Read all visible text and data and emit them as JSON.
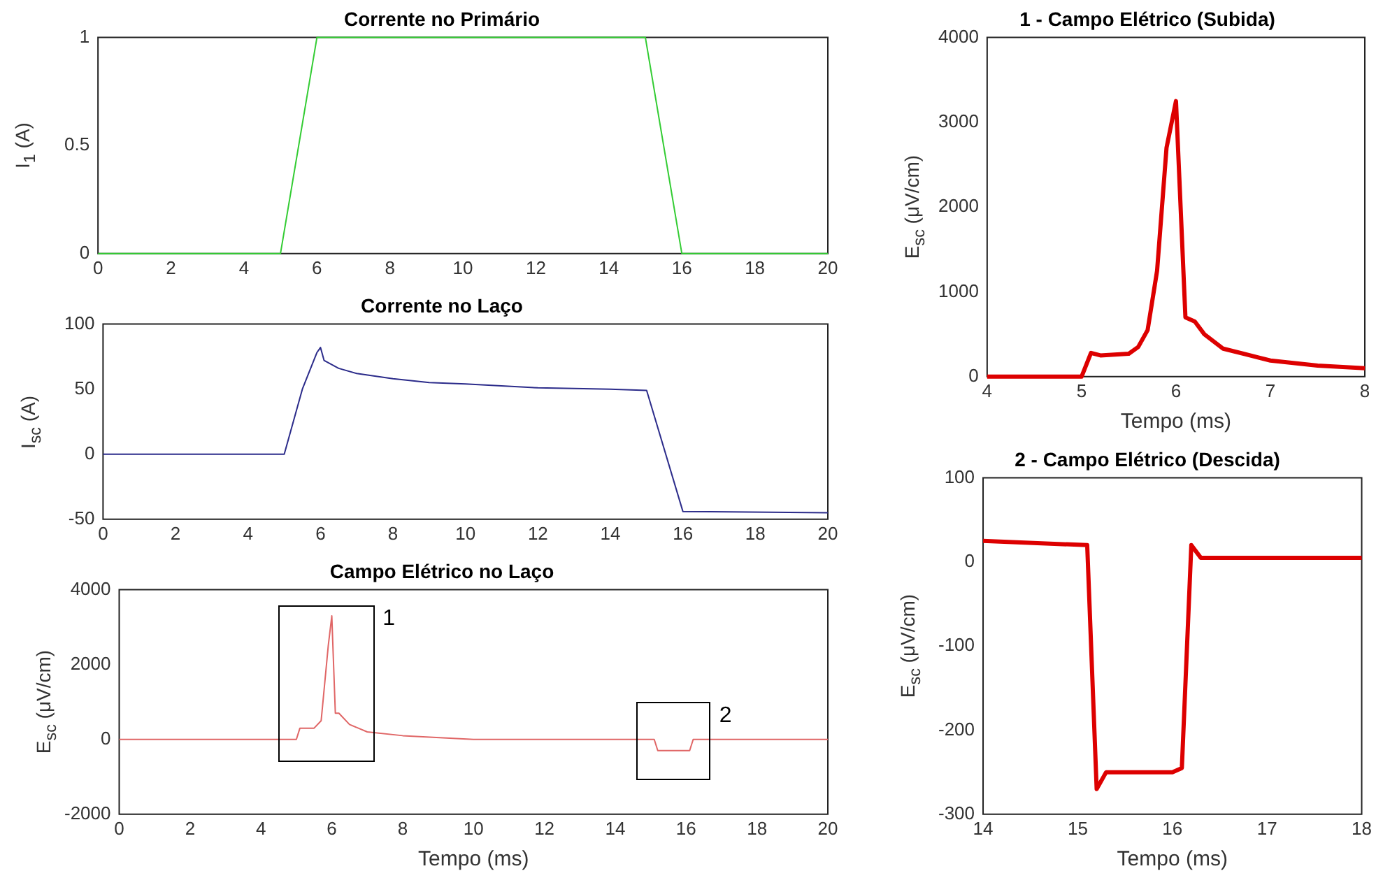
{
  "chart_data": [
    {
      "type": "line",
      "title": "Corrente no Primário",
      "ylabel": "I$_{1}$ (A)",
      "xlim": [
        0,
        20
      ],
      "xticks": [
        0,
        2,
        4,
        6,
        8,
        10,
        12,
        14,
        16,
        18,
        20
      ],
      "ylim": [
        0,
        1
      ],
      "yticks": [
        0,
        0.5,
        1
      ],
      "grid": false,
      "legend": false,
      "marker": "none",
      "series": [
        {
          "color": "#33cc33",
          "x": [
            0,
            5,
            6,
            15,
            16,
            20
          ],
          "values": [
            0,
            0,
            1,
            1,
            0,
            0
          ]
        }
      ]
    },
    {
      "type": "line",
      "title": "Corrente no Laço",
      "ylabel": "I$_{sc}$ (A)",
      "xlim": [
        0,
        20
      ],
      "xticks": [
        0,
        2,
        4,
        6,
        8,
        10,
        12,
        14,
        16,
        18,
        20
      ],
      "ylim": [
        -50,
        100
      ],
      "yticks": [
        -50,
        0,
        50,
        100
      ],
      "grid": false,
      "legend": false,
      "marker": "none",
      "series": [
        {
          "color": "#2b2b8a",
          "x": [
            0,
            5,
            5.5,
            5.9,
            6,
            6.1,
            6.5,
            7,
            8,
            9,
            10,
            12,
            14,
            15,
            16,
            20
          ],
          "values": [
            0,
            0,
            50,
            78,
            82,
            72,
            66,
            62,
            58,
            55,
            54,
            51,
            50,
            49,
            -44,
            -45
          ]
        }
      ]
    },
    {
      "type": "line",
      "title": "Campo Elétrico no Laço",
      "xlabel": "Tempo (ms)",
      "ylabel": "E$_{sc}$ (μV/cm)",
      "xlim": [
        0,
        20
      ],
      "xticks": [
        0,
        2,
        4,
        6,
        8,
        10,
        12,
        14,
        16,
        18,
        20
      ],
      "ylim": [
        -2000,
        4000
      ],
      "yticks": [
        -2000,
        0,
        2000,
        4000
      ],
      "grid": false,
      "legend": false,
      "marker": "none",
      "annotations": [
        "1",
        "2"
      ],
      "series": [
        {
          "color": "#e06666",
          "x": [
            0,
            4,
            5,
            5.1,
            5.5,
            5.7,
            5.9,
            6,
            6.1,
            6.2,
            6.5,
            7,
            8,
            10,
            15,
            15.1,
            15.2,
            16.1,
            16.2,
            16.3,
            20
          ],
          "values": [
            0,
            0,
            0,
            300,
            300,
            500,
            2500,
            3300,
            700,
            700,
            400,
            200,
            100,
            0,
            0,
            0,
            -300,
            -300,
            0,
            0,
            0
          ]
        }
      ]
    },
    {
      "type": "line",
      "title": "1 - Campo Elétrico (Subida)",
      "xlabel": "Tempo (ms)",
      "ylabel": "E$_{sc}$ (μV/cm)",
      "xlim": [
        4,
        8
      ],
      "xticks": [
        4,
        5,
        6,
        7,
        8
      ],
      "ylim": [
        0,
        4000
      ],
      "yticks": [
        0,
        1000,
        2000,
        3000,
        4000
      ],
      "grid": false,
      "legend": false,
      "marker": "none",
      "series": [
        {
          "color": "#dd0000",
          "x": [
            4,
            5,
            5.1,
            5.2,
            5.5,
            5.6,
            5.7,
            5.8,
            5.9,
            6,
            6.1,
            6.2,
            6.3,
            6.5,
            7,
            7.5,
            8
          ],
          "values": [
            0,
            0,
            280,
            250,
            270,
            350,
            550,
            1250,
            2700,
            3250,
            700,
            650,
            500,
            330,
            190,
            130,
            100
          ]
        }
      ]
    },
    {
      "type": "line",
      "title": "2 - Campo Elétrico (Descida)",
      "xlabel": "Tempo (ms)",
      "ylabel": "E$_{sc}$ (μV/cm)",
      "xlim": [
        14,
        18
      ],
      "xticks": [
        14,
        15,
        16,
        17,
        18
      ],
      "ylim": [
        -300,
        100
      ],
      "yticks": [
        -300,
        -200,
        -100,
        0,
        100
      ],
      "grid": false,
      "legend": false,
      "marker": "none",
      "series": [
        {
          "color": "#dd0000",
          "x": [
            14,
            15.1,
            15.2,
            15.3,
            16,
            16.1,
            16.2,
            16.3,
            18
          ],
          "values": [
            25,
            20,
            -270,
            -250,
            -250,
            -245,
            20,
            5,
            5
          ]
        }
      ]
    }
  ]
}
